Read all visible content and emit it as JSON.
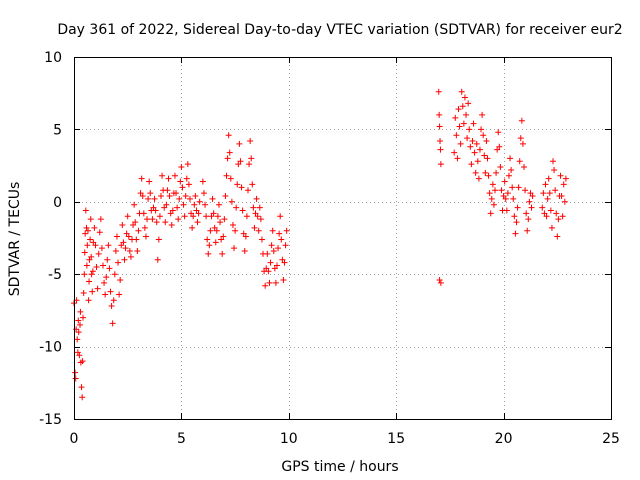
{
  "chart_data": {
    "type": "scatter",
    "title": "Day 361 of 2022, Sidereal Day-to-day VTEC variation (SDTVAR) for receiver eur2",
    "xlabel": "GPS time / hours",
    "ylabel": "SDTVAR / TECUs",
    "xlim": [
      0,
      25
    ],
    "ylim": [
      -15,
      10
    ],
    "xticks": [
      0,
      5,
      10,
      15,
      20,
      25
    ],
    "xtick_labels": [
      "0",
      "5",
      "10",
      "15",
      "20",
      "25"
    ],
    "yticks": [
      -15,
      -10,
      -5,
      0,
      5,
      10
    ],
    "ytick_labels": [
      "-15",
      "-10",
      "-5",
      "0",
      "5",
      "10"
    ],
    "grid": true,
    "marker": "plus",
    "color": "#ff0000",
    "series": [
      {
        "name": "eur2",
        "points": [
          [
            0.0,
            -7.0
          ],
          [
            0.05,
            -11.8
          ],
          [
            0.08,
            -12.2
          ],
          [
            0.1,
            -8.8
          ],
          [
            0.12,
            -6.8
          ],
          [
            0.15,
            -9.5
          ],
          [
            0.18,
            -10.4
          ],
          [
            0.2,
            -8.2
          ],
          [
            0.22,
            -9.0
          ],
          [
            0.25,
            -10.6
          ],
          [
            0.28,
            -8.5
          ],
          [
            0.3,
            -7.6
          ],
          [
            0.32,
            -11.1
          ],
          [
            0.35,
            -12.8
          ],
          [
            0.38,
            -13.5
          ],
          [
            0.4,
            -11.0
          ],
          [
            0.42,
            -8.0
          ],
          [
            0.45,
            -6.3
          ],
          [
            0.48,
            -5.0
          ],
          [
            0.5,
            -3.5
          ],
          [
            0.52,
            -2.2
          ],
          [
            0.55,
            -0.6
          ],
          [
            0.58,
            -1.8
          ],
          [
            0.6,
            -4.4
          ],
          [
            0.62,
            -3.0
          ],
          [
            0.65,
            -2.0
          ],
          [
            0.68,
            -6.8
          ],
          [
            0.7,
            -5.5
          ],
          [
            0.72,
            -4.0
          ],
          [
            0.75,
            -2.6
          ],
          [
            0.78,
            -1.2
          ],
          [
            0.8,
            -3.8
          ],
          [
            0.82,
            -5.0
          ],
          [
            0.85,
            -6.2
          ],
          [
            0.88,
            -4.8
          ],
          [
            0.9,
            -2.8
          ],
          [
            0.95,
            -1.8
          ],
          [
            1.0,
            -3.0
          ],
          [
            1.05,
            -4.5
          ],
          [
            1.1,
            -6.0
          ],
          [
            1.15,
            -3.6
          ],
          [
            1.2,
            -2.1
          ],
          [
            1.25,
            -1.2
          ],
          [
            1.3,
            -3.2
          ],
          [
            1.35,
            -4.4
          ],
          [
            1.4,
            -5.6
          ],
          [
            1.45,
            -6.4
          ],
          [
            1.5,
            -5.2
          ],
          [
            1.55,
            -4.0
          ],
          [
            1.6,
            -3.0
          ],
          [
            1.65,
            -4.6
          ],
          [
            1.7,
            -6.2
          ],
          [
            1.75,
            -7.2
          ],
          [
            1.8,
            -8.4
          ],
          [
            1.85,
            -6.8
          ],
          [
            1.9,
            -5.0
          ],
          [
            1.95,
            -3.4
          ],
          [
            2.0,
            -2.4
          ],
          [
            2.05,
            -4.2
          ],
          [
            2.1,
            -6.4
          ],
          [
            2.15,
            -5.4
          ],
          [
            2.2,
            -3.0
          ],
          [
            2.25,
            -1.6
          ],
          [
            2.3,
            -2.8
          ],
          [
            2.35,
            -4.0
          ],
          [
            2.4,
            -3.2
          ],
          [
            2.45,
            -2.2
          ],
          [
            2.5,
            -1.0
          ],
          [
            2.55,
            -2.4
          ],
          [
            2.6,
            -3.4
          ],
          [
            2.65,
            -3.8
          ],
          [
            2.7,
            -2.6
          ],
          [
            2.75,
            -1.6
          ],
          [
            2.8,
            -0.2
          ],
          [
            2.85,
            -1.4
          ],
          [
            2.9,
            -2.6
          ],
          [
            2.95,
            -3.4
          ],
          [
            3.0,
            -2.0
          ],
          [
            3.05,
            -0.8
          ],
          [
            3.1,
            0.6
          ],
          [
            3.15,
            1.6
          ],
          [
            3.2,
            0.4
          ],
          [
            3.25,
            -0.8
          ],
          [
            3.3,
            -1.8
          ],
          [
            3.35,
            -2.4
          ],
          [
            3.4,
            -1.2
          ],
          [
            3.45,
            0.2
          ],
          [
            3.5,
            1.4
          ],
          [
            3.55,
            0.6
          ],
          [
            3.6,
            -0.6
          ],
          [
            3.65,
            -1.2
          ],
          [
            3.7,
            -0.4
          ],
          [
            3.75,
            0.2
          ],
          [
            3.8,
            -0.6
          ],
          [
            3.85,
            -1.4
          ],
          [
            3.9,
            -4.0
          ],
          [
            3.95,
            -2.6
          ],
          [
            4.0,
            -1.0
          ],
          [
            4.05,
            0.4
          ],
          [
            4.1,
            1.8
          ],
          [
            4.15,
            0.8
          ],
          [
            4.2,
            -0.4
          ],
          [
            4.25,
            -1.4
          ],
          [
            4.3,
            -0.2
          ],
          [
            4.35,
            0.8
          ],
          [
            4.4,
            1.6
          ],
          [
            4.45,
            0.4
          ],
          [
            4.5,
            -0.8
          ],
          [
            4.55,
            -1.6
          ],
          [
            4.6,
            -0.6
          ],
          [
            4.65,
            0.6
          ],
          [
            4.7,
            1.8
          ],
          [
            4.75,
            0.6
          ],
          [
            4.8,
            -0.4
          ],
          [
            4.85,
            -1.2
          ],
          [
            4.9,
            0.2
          ],
          [
            4.95,
            1.4
          ],
          [
            5.0,
            2.4
          ],
          [
            5.05,
            1.0
          ],
          [
            5.1,
            -0.2
          ],
          [
            5.15,
            -1.0
          ],
          [
            5.2,
            0.4
          ],
          [
            5.25,
            1.6
          ],
          [
            5.3,
            2.6
          ],
          [
            5.35,
            1.2
          ],
          [
            5.4,
            0.2
          ],
          [
            5.45,
            -0.8
          ],
          [
            5.5,
            -1.8
          ],
          [
            5.55,
            -1.0
          ],
          [
            5.6,
            -0.2
          ],
          [
            5.65,
            0.4
          ],
          [
            5.7,
            -0.6
          ],
          [
            5.75,
            -1.4
          ],
          [
            5.8,
            -0.8
          ],
          [
            5.85,
            0.0
          ],
          [
            6.0,
            1.4
          ],
          [
            6.05,
            0.6
          ],
          [
            6.1,
            -0.2
          ],
          [
            6.15,
            -1.0
          ],
          [
            6.2,
            -2.6
          ],
          [
            6.25,
            -3.6
          ],
          [
            6.3,
            -3.0
          ],
          [
            6.35,
            -2.0
          ],
          [
            6.4,
            -1.0
          ],
          [
            6.45,
            0.2
          ],
          [
            6.5,
            -0.8
          ],
          [
            6.55,
            -1.8
          ],
          [
            6.6,
            -2.8
          ],
          [
            6.65,
            -2.0
          ],
          [
            6.7,
            -1.0
          ],
          [
            6.75,
            -0.2
          ],
          [
            6.8,
            -1.4
          ],
          [
            6.85,
            -2.6
          ],
          [
            6.9,
            -3.6
          ],
          [
            6.95,
            -2.4
          ],
          [
            7.0,
            -1.2
          ],
          [
            7.05,
            0.4
          ],
          [
            7.1,
            1.8
          ],
          [
            7.15,
            3.0
          ],
          [
            7.2,
            4.6
          ],
          [
            7.25,
            3.4
          ],
          [
            7.3,
            1.6
          ],
          [
            7.35,
            0.0
          ],
          [
            7.4,
            -1.6
          ],
          [
            7.45,
            -3.2
          ],
          [
            7.5,
            -2.0
          ],
          [
            7.55,
            -0.4
          ],
          [
            7.6,
            1.2
          ],
          [
            7.65,
            2.6
          ],
          [
            7.7,
            4.0
          ],
          [
            7.75,
            2.8
          ],
          [
            7.8,
            1.0
          ],
          [
            7.85,
            -0.6
          ],
          [
            7.9,
            -2.2
          ],
          [
            7.95,
            -3.4
          ],
          [
            8.0,
            -2.4
          ],
          [
            8.05,
            -1.0
          ],
          [
            8.1,
            0.8
          ],
          [
            8.15,
            2.6
          ],
          [
            8.2,
            4.2
          ],
          [
            8.25,
            3.0
          ],
          [
            8.3,
            1.2
          ],
          [
            8.35,
            -0.4
          ],
          [
            8.4,
            -1.8
          ],
          [
            8.45,
            -0.8
          ],
          [
            8.5,
            0.2
          ],
          [
            8.55,
            -1.0
          ],
          [
            8.6,
            -2.0
          ],
          [
            8.65,
            -0.4
          ],
          [
            8.7,
            -1.2
          ],
          [
            8.75,
            -2.6
          ],
          [
            8.8,
            -3.6
          ],
          [
            8.85,
            -4.8
          ],
          [
            8.9,
            -5.8
          ],
          [
            8.95,
            -4.6
          ],
          [
            9.0,
            -3.6
          ],
          [
            9.05,
            -4.8
          ],
          [
            9.1,
            -5.6
          ],
          [
            9.15,
            -4.2
          ],
          [
            9.2,
            -3.0
          ],
          [
            9.25,
            -2.0
          ],
          [
            9.3,
            -3.4
          ],
          [
            9.35,
            -4.6
          ],
          [
            9.4,
            -5.6
          ],
          [
            9.45,
            -4.4
          ],
          [
            9.5,
            -3.2
          ],
          [
            9.55,
            -2.2
          ],
          [
            9.6,
            -1.0
          ],
          [
            9.65,
            -2.6
          ],
          [
            9.7,
            -4.0
          ],
          [
            9.75,
            -5.4
          ],
          [
            9.8,
            -4.2
          ],
          [
            9.85,
            -3.0
          ],
          [
            9.9,
            -2.0
          ],
          [
            16.98,
            7.6
          ],
          [
            17.0,
            6.0
          ],
          [
            17.02,
            5.2
          ],
          [
            17.04,
            4.2
          ],
          [
            17.06,
            3.6
          ],
          [
            17.08,
            2.6
          ],
          [
            17.02,
            -5.4
          ],
          [
            17.08,
            -5.6
          ],
          [
            17.7,
            3.4
          ],
          [
            17.75,
            5.8
          ],
          [
            17.8,
            4.6
          ],
          [
            17.85,
            3.0
          ],
          [
            17.9,
            6.4
          ],
          [
            17.95,
            5.2
          ],
          [
            18.0,
            4.0
          ],
          [
            18.05,
            7.6
          ],
          [
            18.1,
            6.6
          ],
          [
            18.15,
            5.4
          ],
          [
            18.2,
            7.2
          ],
          [
            18.25,
            6.0
          ],
          [
            18.3,
            4.4
          ],
          [
            18.35,
            6.8
          ],
          [
            18.4,
            5.0
          ],
          [
            18.45,
            3.8
          ],
          [
            18.5,
            2.6
          ],
          [
            18.55,
            4.2
          ],
          [
            18.6,
            5.4
          ],
          [
            18.65,
            3.4
          ],
          [
            18.7,
            2.0
          ],
          [
            18.75,
            4.0
          ],
          [
            18.8,
            2.8
          ],
          [
            18.85,
            1.6
          ],
          [
            18.9,
            3.6
          ],
          [
            18.95,
            5.0
          ],
          [
            19.0,
            6.0
          ],
          [
            19.05,
            4.6
          ],
          [
            19.1,
            3.2
          ],
          [
            19.15,
            2.0
          ],
          [
            19.2,
            4.2
          ],
          [
            19.25,
            3.0
          ],
          [
            19.3,
            1.8
          ],
          [
            19.35,
            0.6
          ],
          [
            19.4,
            -0.8
          ],
          [
            19.45,
            0.2
          ],
          [
            19.5,
            1.2
          ],
          [
            19.55,
            -0.2
          ],
          [
            19.6,
            0.8
          ],
          [
            19.65,
            2.0
          ],
          [
            19.7,
            3.6
          ],
          [
            19.75,
            4.8
          ],
          [
            19.8,
            3.8
          ],
          [
            19.85,
            2.4
          ],
          [
            19.9,
            0.8
          ],
          [
            19.95,
            -0.6
          ],
          [
            20.0,
            0.4
          ],
          [
            20.05,
            1.4
          ],
          [
            20.1,
            0.2
          ],
          [
            20.15,
            -0.6
          ],
          [
            20.2,
            0.6
          ],
          [
            20.25,
            1.8
          ],
          [
            20.3,
            3.0
          ],
          [
            20.35,
            2.2
          ],
          [
            20.4,
            1.0
          ],
          [
            20.45,
            0.2
          ],
          [
            20.5,
            -1.0
          ],
          [
            20.55,
            -2.2
          ],
          [
            20.6,
            -1.4
          ],
          [
            20.65,
            -0.4
          ],
          [
            20.7,
            1.0
          ],
          [
            20.75,
            2.8
          ],
          [
            20.8,
            4.4
          ],
          [
            20.85,
            5.6
          ],
          [
            20.9,
            4.0
          ],
          [
            20.95,
            2.4
          ],
          [
            21.0,
            0.8
          ],
          [
            21.05,
            -0.8
          ],
          [
            21.1,
            -2.0
          ],
          [
            21.15,
            -1.2
          ],
          [
            21.2,
            0.0
          ],
          [
            21.25,
            0.6
          ],
          [
            21.3,
            -0.4
          ],
          [
            21.35,
            0.4
          ],
          [
            21.8,
            -0.4
          ],
          [
            21.85,
            0.6
          ],
          [
            21.9,
            -0.8
          ],
          [
            21.95,
            1.2
          ],
          [
            22.0,
            -1.0
          ],
          [
            22.05,
            0.2
          ],
          [
            22.1,
            1.6
          ],
          [
            22.15,
            0.6
          ],
          [
            22.2,
            -0.6
          ],
          [
            22.25,
            -1.8
          ],
          [
            22.3,
            2.8
          ],
          [
            22.35,
            2.2
          ],
          [
            22.4,
            0.8
          ],
          [
            22.45,
            -0.8
          ],
          [
            22.5,
            -2.4
          ],
          [
            22.55,
            -1.2
          ],
          [
            22.6,
            0.4
          ],
          [
            22.65,
            1.8
          ],
          [
            22.7,
            0.4
          ],
          [
            22.75,
            -1.0
          ],
          [
            22.8,
            1.2
          ],
          [
            22.85,
            0.0
          ],
          [
            22.9,
            1.6
          ]
        ]
      }
    ]
  }
}
